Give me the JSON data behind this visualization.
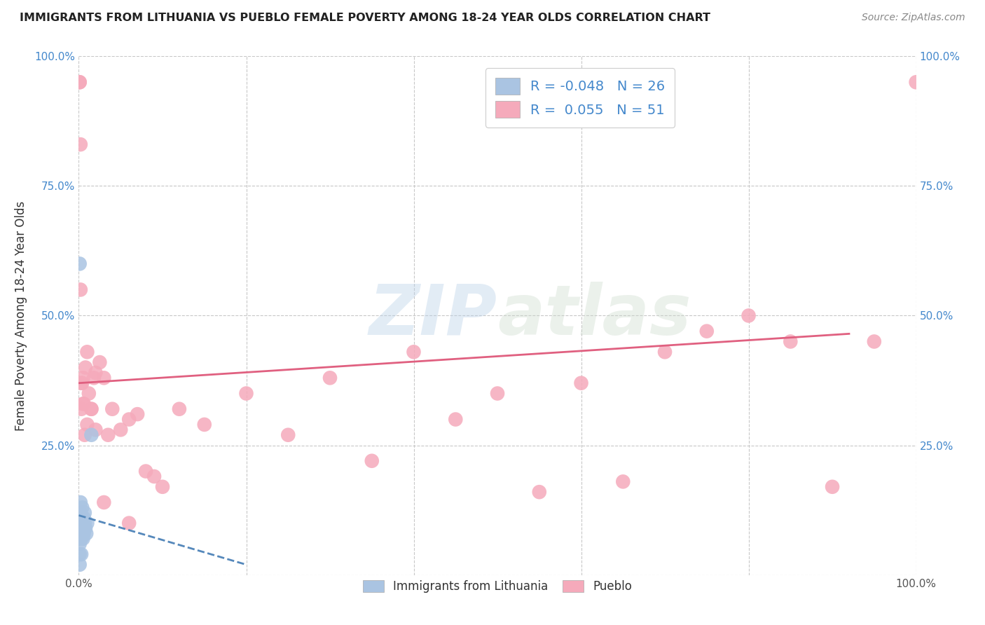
{
  "title": "IMMIGRANTS FROM LITHUANIA VS PUEBLO FEMALE POVERTY AMONG 18-24 YEAR OLDS CORRELATION CHART",
  "source": "Source: ZipAtlas.com",
  "ylabel": "Female Poverty Among 18-24 Year Olds",
  "xlim": [
    0,
    1.0
  ],
  "ylim": [
    0,
    1.0
  ],
  "legend_R_blue": "-0.048",
  "legend_N_blue": "26",
  "legend_R_pink": "0.055",
  "legend_N_pink": "51",
  "blue_color": "#aac4e2",
  "pink_color": "#f5aabb",
  "blue_line_color": "#5588bb",
  "pink_line_color": "#e06080",
  "watermark_zip": "ZIP",
  "watermark_atlas": "atlas",
  "background_color": "#ffffff",
  "blue_scatter_x": [
    0.001,
    0.001,
    0.001,
    0.002,
    0.002,
    0.002,
    0.002,
    0.002,
    0.003,
    0.003,
    0.003,
    0.003,
    0.004,
    0.004,
    0.004,
    0.005,
    0.005,
    0.006,
    0.006,
    0.007,
    0.007,
    0.008,
    0.009,
    0.01,
    0.015,
    0.001
  ],
  "blue_scatter_y": [
    0.02,
    0.04,
    0.06,
    0.07,
    0.09,
    0.1,
    0.12,
    0.14,
    0.04,
    0.07,
    0.09,
    0.11,
    0.08,
    0.1,
    0.13,
    0.07,
    0.09,
    0.08,
    0.11,
    0.1,
    0.12,
    0.09,
    0.08,
    0.1,
    0.27,
    0.6
  ],
  "blue_line_x0": 0.0,
  "blue_line_x1": 0.2,
  "blue_line_y0": 0.115,
  "blue_line_y1": 0.02,
  "pink_scatter_x": [
    0.001,
    0.001,
    0.002,
    0.003,
    0.004,
    0.005,
    0.006,
    0.008,
    0.01,
    0.012,
    0.015,
    0.018,
    0.02,
    0.025,
    0.03,
    0.035,
    0.04,
    0.05,
    0.06,
    0.07,
    0.08,
    0.09,
    0.1,
    0.12,
    0.15,
    0.2,
    0.25,
    0.3,
    0.35,
    0.4,
    0.45,
    0.5,
    0.55,
    0.6,
    0.65,
    0.7,
    0.75,
    0.8,
    0.85,
    0.9,
    0.95,
    1.0,
    0.002,
    0.003,
    0.005,
    0.007,
    0.01,
    0.015,
    0.02,
    0.03,
    0.06
  ],
  "pink_scatter_y": [
    0.95,
    0.95,
    0.83,
    0.37,
    0.37,
    0.38,
    0.33,
    0.4,
    0.43,
    0.35,
    0.32,
    0.38,
    0.39,
    0.41,
    0.38,
    0.27,
    0.32,
    0.28,
    0.3,
    0.31,
    0.2,
    0.19,
    0.17,
    0.32,
    0.29,
    0.35,
    0.27,
    0.38,
    0.22,
    0.43,
    0.3,
    0.35,
    0.16,
    0.37,
    0.18,
    0.43,
    0.47,
    0.5,
    0.45,
    0.17,
    0.45,
    0.95,
    0.55,
    0.32,
    0.33,
    0.27,
    0.29,
    0.32,
    0.28,
    0.14,
    0.1
  ],
  "pink_line_x0": 0.0,
  "pink_line_x1": 0.92,
  "pink_line_y0": 0.37,
  "pink_line_y1": 0.465
}
